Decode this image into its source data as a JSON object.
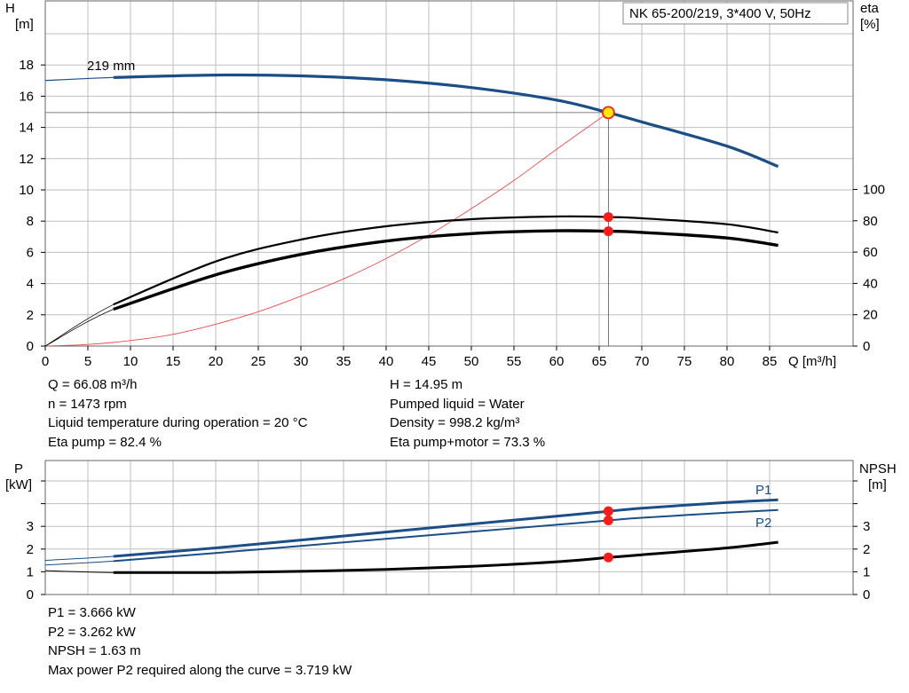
{
  "title_box": "NK 65-200/219, 3*400 V, 50Hz",
  "colors": {
    "head_curve": "#1b4e86",
    "system_curve": "#f04848",
    "eta_curve": "#000000",
    "marker": "#ff1a1a",
    "duty_marker_fill": "#ffea00",
    "grid": "#bfbfbf"
  },
  "head_chart_labels": {
    "y_left_name": "H",
    "y_left_unit": "[m]",
    "y_right_name": "eta",
    "y_right_unit": "[%]",
    "x_label": "Q [m³/h]",
    "curve_label": "219 mm"
  },
  "head_chart_ticks": {
    "x": [
      "0",
      "5",
      "10",
      "15",
      "20",
      "25",
      "30",
      "35",
      "40",
      "45",
      "50",
      "55",
      "60",
      "65",
      "70",
      "75",
      "80",
      "85"
    ],
    "y_left": [
      "0",
      "2",
      "4",
      "6",
      "8",
      "10",
      "12",
      "14",
      "16",
      "18"
    ],
    "y_right": [
      "0",
      "20",
      "40",
      "60",
      "80",
      "100"
    ]
  },
  "power_chart_labels": {
    "y_left_name": "P",
    "y_left_unit": "[kW]",
    "y_right_name": "NPSH",
    "y_right_unit": "[m]",
    "p1_label": "P1",
    "p2_label": "P2"
  },
  "power_chart_ticks": {
    "y_left": [
      "0",
      "1",
      "2",
      "3"
    ],
    "y_right": [
      "0",
      "1",
      "2",
      "3"
    ]
  },
  "operating_point": {
    "left": [
      "Q = 66.08 m³/h",
      "n = 1473 rpm",
      "Liquid temperature during operation = 20 °C",
      "Eta pump = 82.4 %"
    ],
    "right": [
      "H = 14.95 m",
      "Pumped liquid = Water",
      "Density = 998.2 kg/m³",
      "Eta pump+motor = 73.3 %"
    ]
  },
  "power_info": [
    "P1 = 3.666 kW",
    "P2 = 3.262 kW",
    "NPSH = 1.63 m",
    "Max power P2 required along the curve = 3.719 kW"
  ],
  "chart_data": [
    {
      "type": "line",
      "x_unit": "m³/h",
      "xlim": [
        0,
        90
      ],
      "ylim": [
        0,
        20
      ],
      "y2lim": [
        0,
        200
      ],
      "grid": true,
      "series": [
        {
          "name": "219 mm",
          "axis": "H [m]",
          "x": [
            0,
            8,
            20,
            30,
            40,
            50,
            60,
            66.08,
            70,
            80,
            86
          ],
          "y": [
            17.0,
            17.2,
            17.35,
            17.3,
            17.05,
            16.55,
            15.75,
            14.95,
            14.35,
            12.8,
            11.5
          ]
        },
        {
          "axis": "H [m]",
          "style": "system curve",
          "x": [
            0,
            5,
            10,
            15,
            20,
            25,
            30,
            35,
            40,
            45,
            50,
            55,
            60,
            66.08
          ],
          "y": [
            0,
            0.1,
            0.35,
            0.75,
            1.4,
            2.2,
            3.2,
            4.3,
            5.6,
            7.1,
            8.8,
            10.6,
            12.6,
            14.95
          ]
        },
        {
          "axis": "eta [%]",
          "style": "eta pump",
          "x": [
            0,
            8,
            20,
            30,
            40,
            50,
            60,
            66.08,
            70,
            80,
            86
          ],
          "y": [
            0,
            26.5,
            54,
            68,
            76.5,
            81,
            82.7,
            82.4,
            81.6,
            77.8,
            72.5
          ]
        },
        {
          "axis": "eta [%]",
          "style": "eta pump+motor",
          "x": [
            0,
            8,
            20,
            30,
            40,
            50,
            60,
            66.08,
            70,
            80,
            86
          ],
          "y": [
            0,
            23.5,
            45.5,
            58.5,
            67,
            71.8,
            73.6,
            73.3,
            72.6,
            69,
            64.3
          ]
        }
      ],
      "points": [
        {
          "x": 66.08,
          "y": 14.95,
          "axis": "H [m]"
        },
        {
          "x": 66.08,
          "y": 82.4,
          "axis": "eta [%]"
        },
        {
          "x": 66.08,
          "y": 73.3,
          "axis": "eta [%]"
        }
      ]
    },
    {
      "type": "line",
      "x_unit": "m³/h",
      "xlim": [
        0,
        90
      ],
      "ylim": [
        0,
        5
      ],
      "y2lim": [
        0,
        5
      ],
      "grid": true,
      "series": [
        {
          "name": "P1",
          "axis": "P [kW]",
          "x": [
            0,
            8,
            20,
            30,
            40,
            50,
            60,
            66.08,
            70,
            80,
            86
          ],
          "y": [
            1.5,
            1.68,
            2.05,
            2.4,
            2.75,
            3.1,
            3.45,
            3.666,
            3.8,
            4.05,
            4.17
          ]
        },
        {
          "name": "P2",
          "axis": "P [kW]",
          "x": [
            0,
            8,
            20,
            30,
            40,
            50,
            60,
            66.08,
            70,
            80,
            86
          ],
          "y": [
            1.3,
            1.47,
            1.83,
            2.14,
            2.45,
            2.76,
            3.07,
            3.262,
            3.38,
            3.6,
            3.719
          ]
        },
        {
          "name": "NPSH",
          "axis": "NPSH [m]",
          "x": [
            0,
            8,
            20,
            30,
            40,
            50,
            60,
            66.08,
            70,
            80,
            86
          ],
          "y": [
            1.05,
            0.97,
            0.97,
            1.02,
            1.1,
            1.24,
            1.44,
            1.63,
            1.75,
            2.05,
            2.3
          ]
        }
      ],
      "points": [
        {
          "x": 66.08,
          "y": 3.666,
          "axis": "P [kW]"
        },
        {
          "x": 66.08,
          "y": 3.262,
          "axis": "P [kW]"
        },
        {
          "x": 66.08,
          "y": 1.63,
          "axis": "NPSH [m]"
        }
      ]
    }
  ]
}
